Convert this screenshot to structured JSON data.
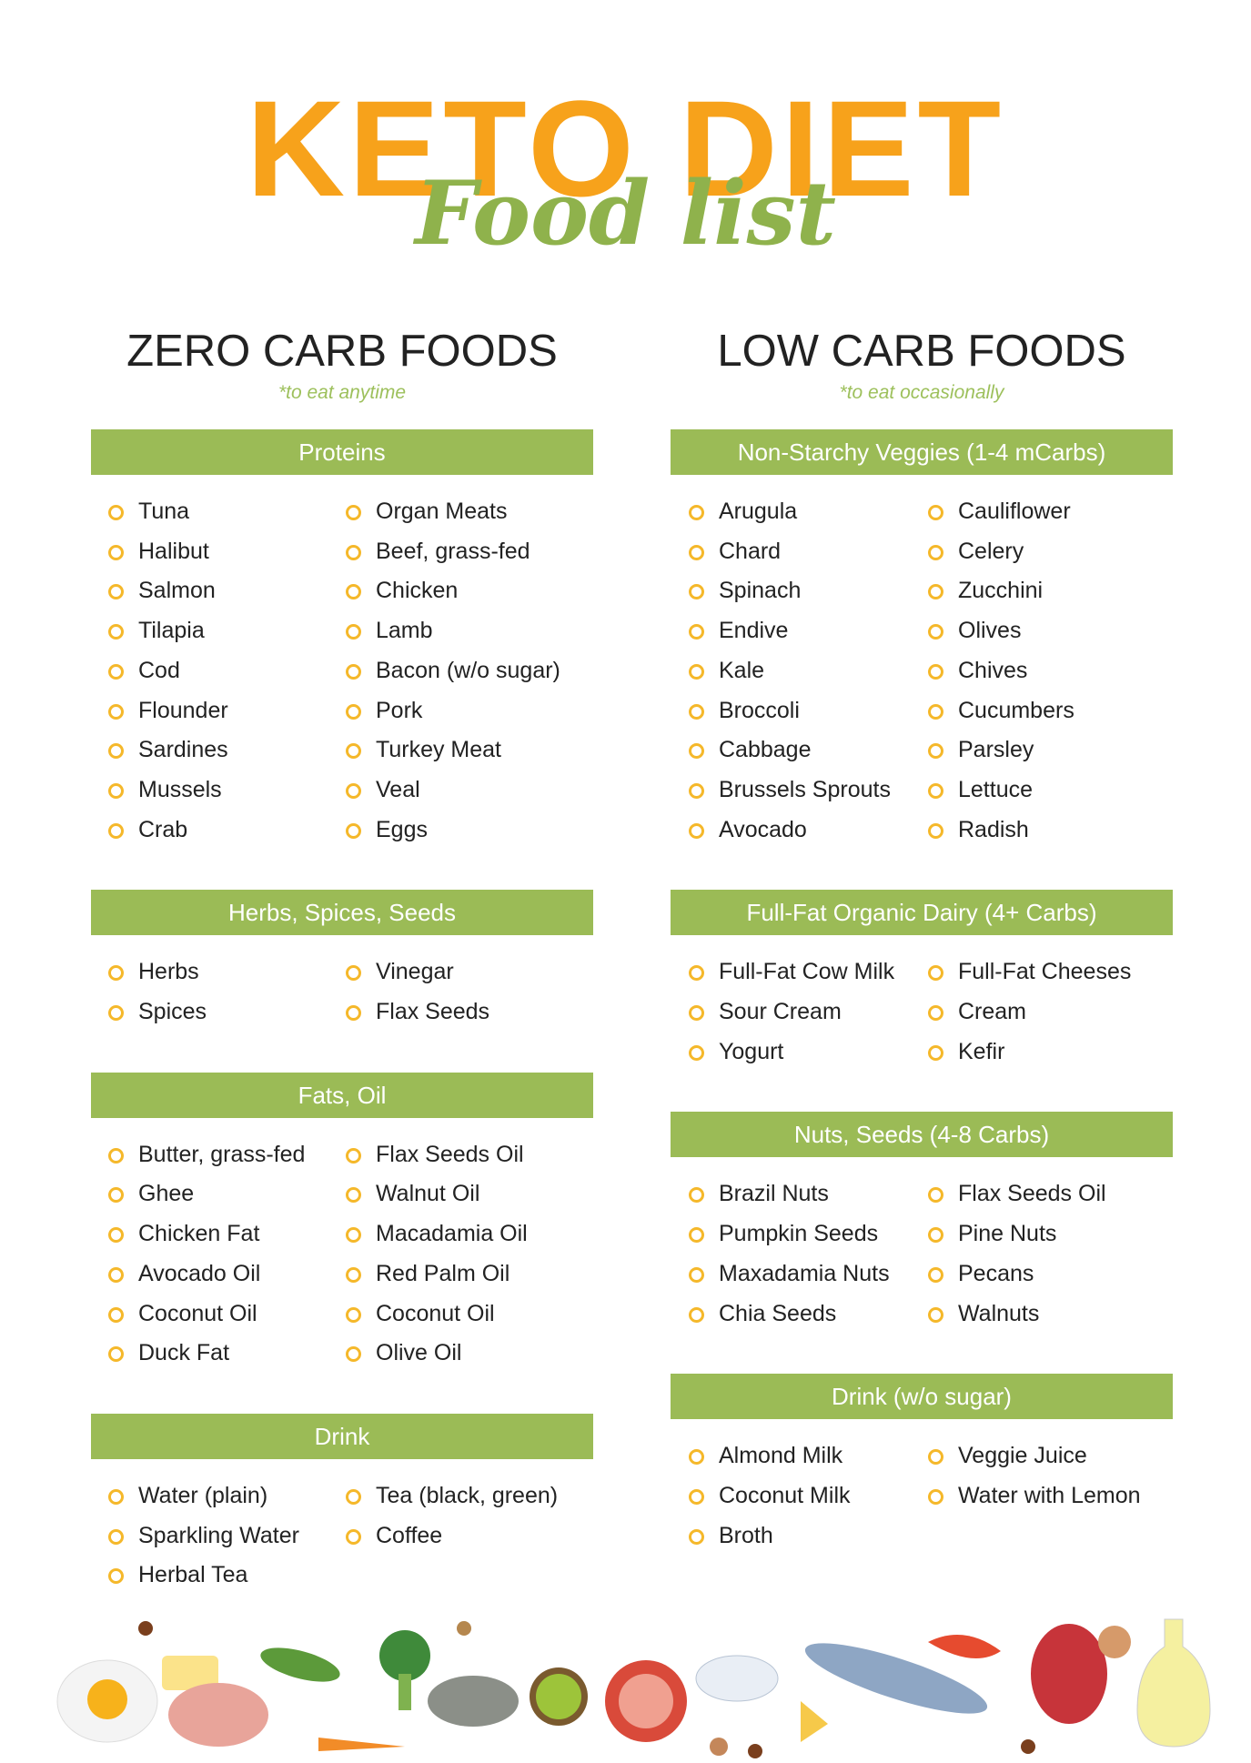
{
  "header": {
    "title": "KETO DIET",
    "subtitle": "Food list"
  },
  "columns": [
    {
      "heading": "ZERO CARB FOODS",
      "note": "*to eat anytime",
      "sections": [
        {
          "title": "Proteins",
          "items": [
            [
              "Tuna",
              "Halibut",
              "Salmon",
              "Tilapia",
              "Cod",
              "Flounder",
              "Sardines",
              "Mussels",
              "Crab"
            ],
            [
              "Organ Meats",
              "Beef, grass-fed",
              "Chicken",
              "Lamb",
              "Bacon (w/o sugar)",
              "Pork",
              "Turkey Meat",
              "Veal",
              "Eggs"
            ]
          ]
        },
        {
          "title": "Herbs, Spices, Seeds",
          "items": [
            [
              "Herbs",
              "Spices"
            ],
            [
              "Vinegar",
              "Flax Seeds"
            ]
          ]
        },
        {
          "title": "Fats, Oil",
          "items": [
            [
              "Butter, grass-fed",
              "Ghee",
              "Chicken Fat",
              "Avocado Oil",
              "Coconut Oil",
              "Duck Fat"
            ],
            [
              "Flax Seeds Oil",
              "Walnut Oil",
              "Macadamia Oil",
              "Red Palm Oil",
              "Coconut Oil",
              "Olive Oil"
            ]
          ]
        },
        {
          "title": "Drink",
          "items": [
            [
              "Water (plain)",
              "Sparkling Water",
              "Herbal Tea"
            ],
            [
              "Tea (black, green)",
              "Coffee"
            ]
          ]
        }
      ]
    },
    {
      "heading": "LOW CARB FOODS",
      "note": "*to eat occasionally",
      "sections": [
        {
          "title": "Non-Starchy Veggies (1-4 mCarbs)",
          "items": [
            [
              "Arugula",
              "Chard",
              "Spinach",
              "Endive",
              "Kale",
              "Broccoli",
              "Cabbage",
              "Brussels Sprouts",
              "Avocado"
            ],
            [
              "Cauliflower",
              "Celery",
              "Zucchini",
              "Olives",
              "Chives",
              "Cucumbers",
              "Parsley",
              "Lettuce",
              "Radish"
            ]
          ]
        },
        {
          "title": "Full-Fat Organic Dairy (4+ Carbs)",
          "items": [
            [
              "Full-Fat Cow Milk",
              "Sour Cream",
              "Yogurt"
            ],
            [
              "Full-Fat Cheeses",
              "Cream",
              "Kefir"
            ]
          ]
        },
        {
          "title": "Nuts, Seeds (4-8 Carbs)",
          "items": [
            [
              "Brazil Nuts",
              "Pumpkin Seeds",
              "Maxadamia Nuts",
              "Chia Seeds"
            ],
            [
              "Flax Seeds Oil",
              "Pine Nuts",
              "Pecans",
              "Walnuts"
            ]
          ]
        },
        {
          "title": "Drink (w/o sugar)",
          "items": [
            [
              "Almond Milk",
              "Coconut Milk",
              "Broth"
            ],
            [
              "Veggie Juice",
              "Water with Lemon"
            ]
          ]
        }
      ]
    }
  ]
}
